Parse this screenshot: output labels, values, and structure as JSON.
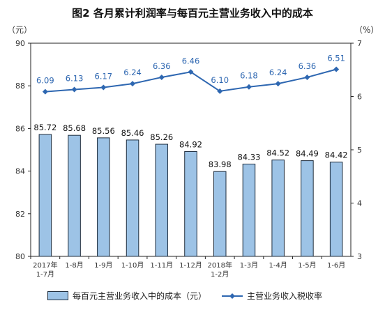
{
  "chart_data": {
    "type": "bar+line",
    "title": "图2  各月累计利润率与每百元主营业务收入中的成本",
    "left_unit": "（元）",
    "right_unit": "（%）",
    "categories": [
      [
        "2017年",
        "1-7月"
      ],
      [
        "1-8月"
      ],
      [
        "1-9月"
      ],
      [
        "1-10月"
      ],
      [
        "1-11月"
      ],
      [
        "1-12月"
      ],
      [
        "2018年",
        "1-2月"
      ],
      [
        "1-3月"
      ],
      [
        "1-4月"
      ],
      [
        "1-5月"
      ],
      [
        "1-6月"
      ]
    ],
    "bar_series": {
      "name": "每百元主营业务收入中的成本（元）",
      "values": [
        85.72,
        85.68,
        85.56,
        85.46,
        85.26,
        84.92,
        83.98,
        84.33,
        84.52,
        84.49,
        84.42
      ],
      "labels": [
        "85.72",
        "85.68",
        "85.56",
        "85.46",
        "85.26",
        "84.92",
        "83.98",
        "84.33",
        "84.52",
        "84.49",
        "84.42"
      ],
      "color": "#9dc3e6",
      "border": "#1f2d3d"
    },
    "line_series": {
      "name": "主营业务收入税收率",
      "values": [
        6.09,
        6.13,
        6.17,
        6.24,
        6.36,
        6.46,
        6.1,
        6.18,
        6.24,
        6.36,
        6.51
      ],
      "labels": [
        "6.09",
        "6.13",
        "6.17",
        "6.24",
        "6.36",
        "6.46",
        "6.10",
        "6.18",
        "6.24",
        "6.36",
        "6.51"
      ],
      "color": "#2e67b1"
    },
    "ylim_left": [
      80,
      90
    ],
    "yticks_left": [
      "80",
      "82",
      "84",
      "86",
      "88",
      "90"
    ],
    "ylim_right": [
      3,
      7
    ],
    "yticks_right": [
      "3",
      "4",
      "5",
      "6",
      "7"
    ],
    "grid": false,
    "legend_position": "bottom"
  }
}
